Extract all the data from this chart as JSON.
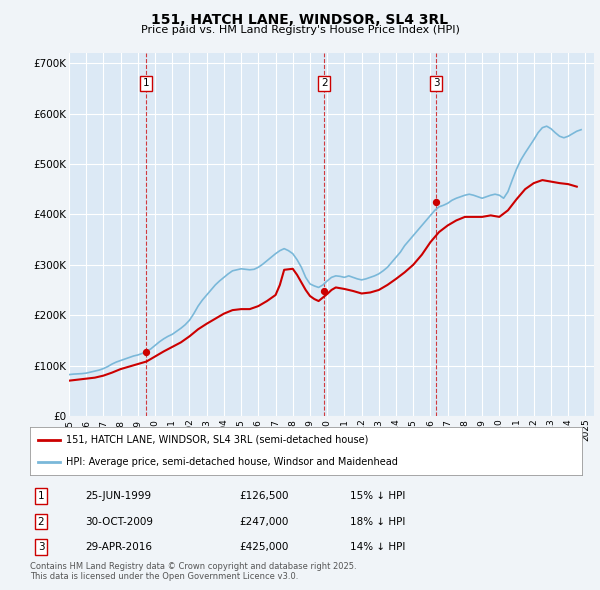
{
  "title": "151, HATCH LANE, WINDSOR, SL4 3RL",
  "subtitle": "Price paid vs. HM Land Registry's House Price Index (HPI)",
  "ylabel_ticks": [
    "£0",
    "£100K",
    "£200K",
    "£300K",
    "£400K",
    "£500K",
    "£600K",
    "£700K"
  ],
  "ytick_values": [
    0,
    100000,
    200000,
    300000,
    400000,
    500000,
    600000,
    700000
  ],
  "ylim": [
    0,
    720000
  ],
  "xlim_start": 1995.0,
  "xlim_end": 2025.5,
  "fig_bg_color": "#f0f4f8",
  "plot_bg_color": "#dce9f5",
  "grid_color": "#ffffff",
  "hpi_line_color": "#7ab8d9",
  "price_line_color": "#cc0000",
  "vline_color": "#cc0000",
  "legend_entries": [
    "151, HATCH LANE, WINDSOR, SL4 3RL (semi-detached house)",
    "HPI: Average price, semi-detached house, Windsor and Maidenhead"
  ],
  "transactions": [
    {
      "num": 1,
      "date": "25-JUN-1999",
      "price": 126500,
      "pct": "15%",
      "year": 1999.48
    },
    {
      "num": 2,
      "date": "30-OCT-2009",
      "price": 247000,
      "pct": "18%",
      "year": 2009.83
    },
    {
      "num": 3,
      "date": "29-APR-2016",
      "price": 425000,
      "pct": "14%",
      "year": 2016.33
    }
  ],
  "footnote_line1": "Contains HM Land Registry data © Crown copyright and database right 2025.",
  "footnote_line2": "This data is licensed under the Open Government Licence v3.0.",
  "hpi_years": [
    1995.0,
    1995.25,
    1995.5,
    1995.75,
    1996.0,
    1996.25,
    1996.5,
    1996.75,
    1997.0,
    1997.25,
    1997.5,
    1997.75,
    1998.0,
    1998.25,
    1998.5,
    1998.75,
    1999.0,
    1999.25,
    1999.5,
    1999.75,
    2000.0,
    2000.25,
    2000.5,
    2000.75,
    2001.0,
    2001.25,
    2001.5,
    2001.75,
    2002.0,
    2002.25,
    2002.5,
    2002.75,
    2003.0,
    2003.25,
    2003.5,
    2003.75,
    2004.0,
    2004.25,
    2004.5,
    2004.75,
    2005.0,
    2005.25,
    2005.5,
    2005.75,
    2006.0,
    2006.25,
    2006.5,
    2006.75,
    2007.0,
    2007.25,
    2007.5,
    2007.75,
    2008.0,
    2008.25,
    2008.5,
    2008.75,
    2009.0,
    2009.25,
    2009.5,
    2009.75,
    2010.0,
    2010.25,
    2010.5,
    2010.75,
    2011.0,
    2011.25,
    2011.5,
    2011.75,
    2012.0,
    2012.25,
    2012.5,
    2012.75,
    2013.0,
    2013.25,
    2013.5,
    2013.75,
    2014.0,
    2014.25,
    2014.5,
    2014.75,
    2015.0,
    2015.25,
    2015.5,
    2015.75,
    2016.0,
    2016.25,
    2016.5,
    2016.75,
    2017.0,
    2017.25,
    2017.5,
    2017.75,
    2018.0,
    2018.25,
    2018.5,
    2018.75,
    2019.0,
    2019.25,
    2019.5,
    2019.75,
    2020.0,
    2020.25,
    2020.5,
    2020.75,
    2021.0,
    2021.25,
    2021.5,
    2021.75,
    2022.0,
    2022.25,
    2022.5,
    2022.75,
    2023.0,
    2023.25,
    2023.5,
    2023.75,
    2024.0,
    2024.25,
    2024.5,
    2024.75
  ],
  "hpi_values": [
    82000,
    83000,
    83500,
    84000,
    85000,
    87000,
    89000,
    91000,
    94000,
    98000,
    103000,
    107000,
    110000,
    113000,
    116000,
    119000,
    121000,
    124000,
    128000,
    133000,
    140000,
    147000,
    153000,
    158000,
    162000,
    168000,
    174000,
    181000,
    190000,
    203000,
    218000,
    230000,
    240000,
    250000,
    260000,
    268000,
    275000,
    282000,
    288000,
    290000,
    292000,
    291000,
    290000,
    291000,
    295000,
    301000,
    308000,
    315000,
    322000,
    328000,
    332000,
    328000,
    322000,
    310000,
    295000,
    275000,
    262000,
    258000,
    255000,
    260000,
    268000,
    275000,
    278000,
    277000,
    275000,
    278000,
    275000,
    272000,
    270000,
    272000,
    275000,
    278000,
    282000,
    288000,
    295000,
    305000,
    315000,
    325000,
    338000,
    348000,
    358000,
    368000,
    378000,
    388000,
    398000,
    408000,
    415000,
    418000,
    422000,
    428000,
    432000,
    435000,
    438000,
    440000,
    438000,
    435000,
    432000,
    435000,
    438000,
    440000,
    438000,
    432000,
    445000,
    468000,
    490000,
    508000,
    522000,
    535000,
    548000,
    562000,
    572000,
    575000,
    570000,
    562000,
    555000,
    552000,
    555000,
    560000,
    565000,
    568000
  ],
  "pp_years": [
    1995.0,
    1995.5,
    1996.0,
    1996.5,
    1997.0,
    1997.5,
    1998.0,
    1998.5,
    1999.0,
    1999.5,
    2000.0,
    2000.5,
    2001.0,
    2001.5,
    2002.0,
    2002.5,
    2003.0,
    2003.5,
    2004.0,
    2004.5,
    2005.0,
    2005.5,
    2006.0,
    2006.5,
    2007.0,
    2007.25,
    2007.5,
    2008.0,
    2008.25,
    2008.5,
    2008.75,
    2009.0,
    2009.25,
    2009.5,
    2009.75,
    2010.0,
    2010.25,
    2010.5,
    2011.0,
    2011.5,
    2012.0,
    2012.5,
    2013.0,
    2013.5,
    2014.0,
    2014.5,
    2015.0,
    2015.5,
    2016.0,
    2016.5,
    2017.0,
    2017.5,
    2018.0,
    2018.5,
    2019.0,
    2019.5,
    2020.0,
    2020.5,
    2021.0,
    2021.5,
    2022.0,
    2022.5,
    2023.0,
    2023.5,
    2024.0,
    2024.5
  ],
  "pp_values": [
    70000,
    72000,
    74000,
    76000,
    80000,
    86000,
    93000,
    98000,
    103000,
    108000,
    118000,
    128000,
    137000,
    146000,
    158000,
    172000,
    183000,
    193000,
    203000,
    210000,
    212000,
    212000,
    218000,
    228000,
    240000,
    260000,
    290000,
    292000,
    280000,
    265000,
    250000,
    238000,
    232000,
    228000,
    235000,
    242000,
    250000,
    255000,
    252000,
    248000,
    243000,
    245000,
    250000,
    260000,
    272000,
    285000,
    300000,
    320000,
    345000,
    365000,
    378000,
    388000,
    395000,
    395000,
    395000,
    398000,
    395000,
    408000,
    430000,
    450000,
    462000,
    468000,
    465000,
    462000,
    460000,
    455000
  ]
}
